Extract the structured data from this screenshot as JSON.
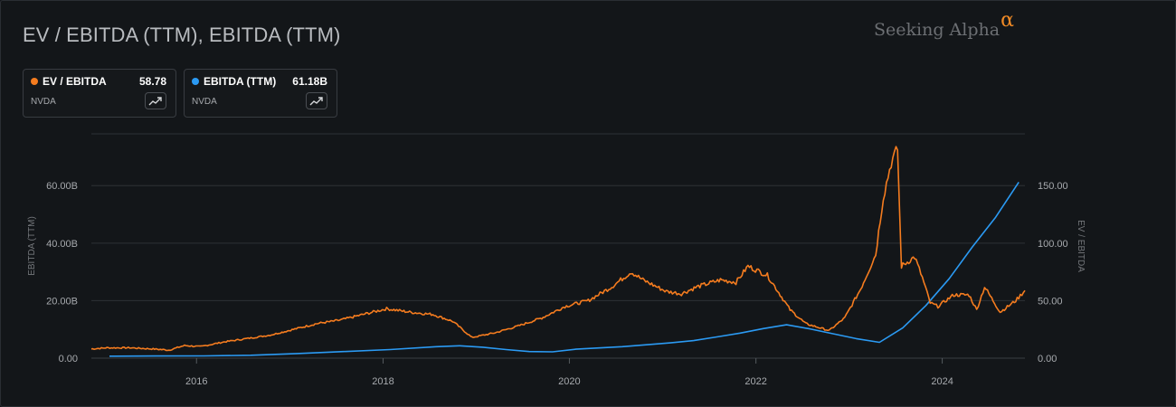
{
  "title": "EV / EBITDA (TTM), EBITDA (TTM)",
  "brand": {
    "name": "Seeking Alpha",
    "symbol": "α"
  },
  "legend": [
    {
      "name": "EV / EBITDA",
      "value": "58.78",
      "ticker": "NVDA",
      "color": "#f57c1f",
      "icon": "trend-up-icon"
    },
    {
      "name": "EBITDA (TTM)",
      "value": "61.18B",
      "ticker": "NVDA",
      "color": "#2b9af3",
      "icon": "trend-up-icon"
    }
  ],
  "chart_data": {
    "type": "line",
    "x_axis": {
      "ticks": [
        "2016",
        "2018",
        "2020",
        "2022",
        "2024"
      ],
      "range": [
        "2014-11-15",
        "2024-11-20"
      ]
    },
    "y_left": {
      "label": "EBITDA (TTM)",
      "ticks": [
        "0.00",
        "20.00B",
        "40.00B",
        "60.00B"
      ],
      "tick_values": [
        0,
        20,
        40,
        60
      ],
      "range": [
        0,
        78
      ],
      "units": "billions USD"
    },
    "y_right": {
      "label": "EV / EBITDA",
      "ticks": [
        "0.00",
        "50.00",
        "100.00",
        "150.00"
      ],
      "tick_values": [
        0,
        50,
        100,
        150
      ],
      "range": [
        0,
        195
      ]
    },
    "grid": true,
    "series": [
      {
        "name": "EBITDA (TTM)",
        "axis": "left",
        "color": "#2b9af3",
        "points": [
          [
            "2015-01-25",
            0.7
          ],
          [
            "2015-07-26",
            0.75
          ],
          [
            "2016-01-31",
            0.8
          ],
          [
            "2016-07-31",
            1.0
          ],
          [
            "2017-01-29",
            1.6
          ],
          [
            "2017-07-30",
            2.3
          ],
          [
            "2018-01-28",
            3.0
          ],
          [
            "2018-07-29",
            4.0
          ],
          [
            "2018-10-28",
            4.3
          ],
          [
            "2019-01-27",
            3.8
          ],
          [
            "2019-04-28",
            3.0
          ],
          [
            "2019-07-28",
            2.3
          ],
          [
            "2019-10-27",
            2.2
          ],
          [
            "2020-01-26",
            3.1
          ],
          [
            "2020-07-26",
            4.0
          ],
          [
            "2021-01-31",
            5.3
          ],
          [
            "2021-05-02",
            6.1
          ],
          [
            "2021-08-01",
            7.4
          ],
          [
            "2021-10-31",
            8.7
          ],
          [
            "2022-01-30",
            10.3
          ],
          [
            "2022-05-01",
            11.6
          ],
          [
            "2022-07-31",
            10.2
          ],
          [
            "2022-10-30",
            8.5
          ],
          [
            "2023-01-29",
            6.8
          ],
          [
            "2023-04-30",
            5.5
          ],
          [
            "2023-07-30",
            10.5
          ],
          [
            "2023-10-29",
            18.3
          ],
          [
            "2024-01-28",
            27.6
          ],
          [
            "2024-04-28",
            38.7
          ],
          [
            "2024-07-28",
            49.0
          ],
          [
            "2024-10-27",
            61.2
          ]
        ]
      },
      {
        "name": "EV / EBITDA",
        "axis": "right",
        "color": "#f57c1f",
        "points": [
          [
            "2014-11-15",
            8
          ],
          [
            "2015-01-15",
            9
          ],
          [
            "2015-04-15",
            9
          ],
          [
            "2015-07-15",
            8
          ],
          [
            "2015-09-15",
            7
          ],
          [
            "2015-11-15",
            11
          ],
          [
            "2016-01-15",
            10
          ],
          [
            "2016-04-15",
            14
          ],
          [
            "2016-07-15",
            17
          ],
          [
            "2016-10-15",
            20
          ],
          [
            "2017-01-15",
            25
          ],
          [
            "2017-04-15",
            30
          ],
          [
            "2017-07-15",
            33
          ],
          [
            "2017-10-15",
            38
          ],
          [
            "2018-01-15",
            43
          ],
          [
            "2018-04-15",
            40
          ],
          [
            "2018-07-15",
            38
          ],
          [
            "2018-10-01",
            32
          ],
          [
            "2018-12-15",
            18
          ],
          [
            "2019-03-15",
            22
          ],
          [
            "2019-06-15",
            28
          ],
          [
            "2019-09-15",
            35
          ],
          [
            "2019-12-15",
            45
          ],
          [
            "2020-03-15",
            50
          ],
          [
            "2020-06-15",
            62
          ],
          [
            "2020-08-30",
            75
          ],
          [
            "2020-10-15",
            68
          ],
          [
            "2021-01-15",
            58
          ],
          [
            "2021-03-15",
            56
          ],
          [
            "2021-05-15",
            62
          ],
          [
            "2021-08-15",
            68
          ],
          [
            "2021-10-15",
            66
          ],
          [
            "2021-12-01",
            80
          ],
          [
            "2022-02-15",
            72
          ],
          [
            "2022-05-15",
            42
          ],
          [
            "2022-07-15",
            30
          ],
          [
            "2022-10-15",
            24
          ],
          [
            "2022-12-15",
            35
          ],
          [
            "2023-02-15",
            60
          ],
          [
            "2023-04-15",
            90
          ],
          [
            "2023-05-15",
            140
          ],
          [
            "2023-06-15",
            170
          ],
          [
            "2023-07-10",
            182
          ],
          [
            "2023-07-25",
            80
          ],
          [
            "2023-09-15",
            88
          ],
          [
            "2023-10-15",
            70
          ],
          [
            "2023-11-15",
            48
          ],
          [
            "2023-12-15",
            45
          ],
          [
            "2024-02-15",
            55
          ],
          [
            "2024-04-15",
            55
          ],
          [
            "2024-05-15",
            42
          ],
          [
            "2024-06-15",
            62
          ],
          [
            "2024-08-15",
            40
          ],
          [
            "2024-10-15",
            50
          ],
          [
            "2024-11-20",
            58.78
          ]
        ]
      }
    ]
  }
}
